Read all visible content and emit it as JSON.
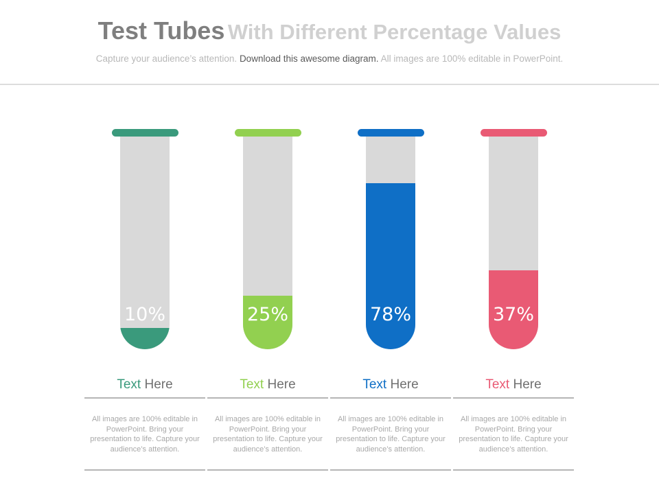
{
  "header": {
    "title_main": "Test Tubes",
    "title_rest": "With Different Percentage Values",
    "subtitle_pre": "Capture your audience’s attention.",
    "subtitle_highlight": "Download this awesome diagram.",
    "subtitle_post": "All images are 100% editable in PowerPoint."
  },
  "chart_data": {
    "type": "bar",
    "title": "Test Tubes With Different Percentage Values",
    "categories": [
      "Text Here",
      "Text Here",
      "Text Here",
      "Text Here"
    ],
    "values": [
      10,
      25,
      78,
      37
    ],
    "ylim": [
      0,
      100
    ],
    "unit": "%"
  },
  "tubes": [
    {
      "pct_label": "10%",
      "value": 10,
      "color": "#3a9a7c",
      "label_word": "Text",
      "label_rest": " Here",
      "desc": "All images are 100% editable in PowerPoint. Bring your presentation to life. Capture your audience’s attention."
    },
    {
      "pct_label": "25%",
      "value": 25,
      "color": "#92d050",
      "label_word": "Text",
      "label_rest": " Here",
      "desc": "All images are 100% editable in PowerPoint. Bring your presentation to life. Capture your audience’s attention."
    },
    {
      "pct_label": "78%",
      "value": 78,
      "color": "#0f6fc6",
      "label_word": "Text",
      "label_rest": " Here",
      "desc": "All images are 100% editable in PowerPoint. Bring your presentation to life. Capture your audience’s attention."
    },
    {
      "pct_label": "37%",
      "value": 37,
      "color": "#e95a74",
      "label_word": "Text",
      "label_rest": " Here",
      "desc": "All images are 100% editable in PowerPoint. Bring your presentation to life. Capture your audience’s attention."
    }
  ]
}
